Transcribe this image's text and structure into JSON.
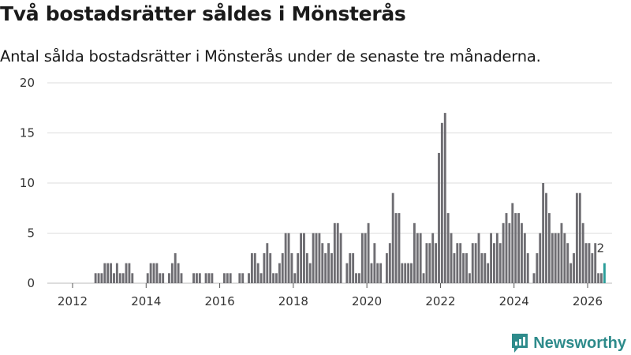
{
  "title": "Två bostadsrätter såldes i Mönsterås",
  "subtitle": "Antal sålda bostadsrätter i Mönsterås under de senaste tre månaderna.",
  "brand": "Newsworthy",
  "colors": {
    "bar": "#6e6d72",
    "highlight": "#2a9d99",
    "grid": "#dddddd",
    "text": "#333333",
    "brand": "#2e8b8b"
  },
  "chart_data": {
    "type": "bar",
    "title": "Två bostadsrätter såldes i Mönsterås",
    "xlabel": "",
    "ylabel": "",
    "ylim": [
      0,
      20
    ],
    "yticks": [
      0,
      5,
      10,
      15,
      20
    ],
    "xlim": [
      2012,
      2026
    ],
    "xticks": [
      "2012",
      "2014",
      "2016",
      "2018",
      "2020",
      "2022",
      "2024",
      "2026"
    ],
    "grid": true,
    "bar_interval": "month",
    "series": [
      {
        "name": "Antal sålda bostadsrätter",
        "start": "2012-01",
        "values": [
          0,
          0,
          0,
          0,
          0,
          0,
          0,
          1,
          1,
          1,
          2,
          2,
          2,
          1,
          2,
          1,
          1,
          2,
          2,
          1,
          0,
          0,
          0,
          0,
          1,
          2,
          2,
          2,
          1,
          1,
          0,
          1,
          2,
          3,
          2,
          1,
          0,
          0,
          0,
          1,
          1,
          1,
          0,
          1,
          1,
          1,
          0,
          0,
          0,
          1,
          1,
          1,
          0,
          0,
          1,
          1,
          0,
          1,
          3,
          3,
          2,
          1,
          3,
          4,
          3,
          1,
          1,
          2,
          3,
          5,
          5,
          3,
          1,
          3,
          5,
          5,
          3,
          2,
          5,
          5,
          5,
          4,
          3,
          4,
          3,
          6,
          6,
          5,
          0,
          2,
          3,
          3,
          1,
          1,
          5,
          5,
          6,
          2,
          4,
          2,
          2,
          0,
          3,
          4,
          9,
          7,
          7,
          2,
          2,
          2,
          2,
          6,
          5,
          5,
          1,
          4,
          4,
          5,
          4,
          13,
          16,
          17,
          7,
          5,
          3,
          4,
          4,
          3,
          3,
          1,
          4,
          4,
          5,
          3,
          3,
          2,
          5,
          4,
          5,
          4,
          6,
          7,
          6,
          8,
          7,
          7,
          6,
          5,
          3,
          0,
          1,
          3,
          5,
          10,
          9,
          7,
          5,
          5,
          5,
          6,
          5,
          4,
          2,
          3,
          9,
          9,
          6,
          4,
          4,
          3,
          4,
          1,
          1,
          2
        ]
      }
    ],
    "highlight": {
      "label": "2",
      "value": 2,
      "index": 173
    }
  }
}
